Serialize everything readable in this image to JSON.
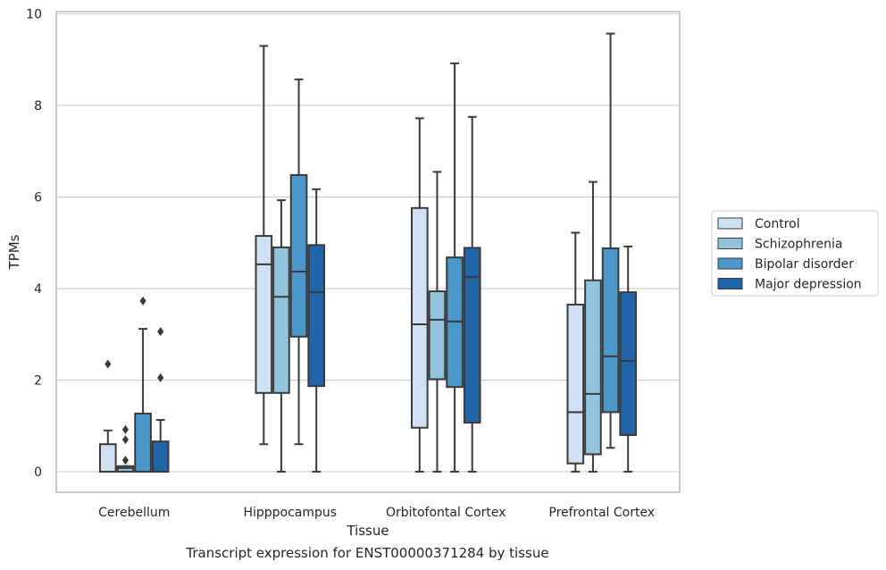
{
  "caption": "Transcript expression for ENST00000371284 by tissue",
  "chart_data": {
    "type": "box",
    "xlabel": "Tissue",
    "ylabel": "TPMs",
    "ylim": [
      -0.45,
      10.05
    ],
    "yticks": [
      0,
      2,
      4,
      6,
      8,
      10
    ],
    "grid": "horizontal",
    "legend_position": "right",
    "categories": [
      "Cerebellum",
      "Hipppocampus",
      "Orbitofontal Cortex",
      "Prefrontal Cortex"
    ],
    "series": [
      {
        "name": "Control",
        "color": "#cfe1f2",
        "boxes": [
          {
            "min": 0,
            "q1": 0,
            "median": 0,
            "q3": 0.6,
            "max": 0.9,
            "outliers": [
              2.35
            ]
          },
          {
            "min": 0.6,
            "q1": 1.72,
            "median": 4.53,
            "q3": 5.15,
            "max": 9.3,
            "outliers": []
          },
          {
            "min": 0,
            "q1": 0.96,
            "median": 3.22,
            "q3": 5.76,
            "max": 7.72,
            "outliers": []
          },
          {
            "min": 0,
            "q1": 0.18,
            "median": 1.3,
            "q3": 3.65,
            "max": 5.22,
            "outliers": []
          }
        ]
      },
      {
        "name": "Schizophrenia",
        "color": "#93c4de",
        "boxes": [
          {
            "min": 0,
            "q1": 0,
            "median": 0.08,
            "q3": 0.12,
            "max": 0.12,
            "outliers": [
              0.25,
              0.7,
              0.92
            ]
          },
          {
            "min": 0,
            "q1": 1.72,
            "median": 3.82,
            "q3": 4.9,
            "max": 5.93,
            "outliers": []
          },
          {
            "min": 0,
            "q1": 2.02,
            "median": 3.32,
            "q3": 3.94,
            "max": 6.55,
            "outliers": []
          },
          {
            "min": 0,
            "q1": 0.38,
            "median": 1.7,
            "q3": 4.18,
            "max": 6.33,
            "outliers": []
          }
        ]
      },
      {
        "name": "Bipolar disorder",
        "color": "#4a98c9",
        "boxes": [
          {
            "min": 0,
            "q1": 0,
            "median": 0,
            "q3": 1.27,
            "max": 3.12,
            "outliers": [
              3.73
            ]
          },
          {
            "min": 0.6,
            "q1": 2.95,
            "median": 4.37,
            "q3": 6.48,
            "max": 8.57,
            "outliers": []
          },
          {
            "min": 0,
            "q1": 1.85,
            "median": 3.28,
            "q3": 4.68,
            "max": 8.92,
            "outliers": []
          },
          {
            "min": 0.52,
            "q1": 1.3,
            "median": 2.52,
            "q3": 4.88,
            "max": 9.57,
            "outliers": []
          }
        ]
      },
      {
        "name": "Major depression",
        "color": "#2264a8",
        "boxes": [
          {
            "min": 0,
            "q1": 0,
            "median": 0,
            "q3": 0.66,
            "max": 1.13,
            "outliers": [
              2.05,
              3.06
            ]
          },
          {
            "min": 0,
            "q1": 1.87,
            "median": 3.92,
            "q3": 4.95,
            "max": 6.17,
            "outliers": []
          },
          {
            "min": 0,
            "q1": 1.07,
            "median": 4.25,
            "q3": 4.89,
            "max": 7.75,
            "outliers": []
          },
          {
            "min": 0,
            "q1": 0.8,
            "median": 2.42,
            "q3": 3.92,
            "max": 4.92,
            "outliers": []
          }
        ]
      }
    ]
  }
}
